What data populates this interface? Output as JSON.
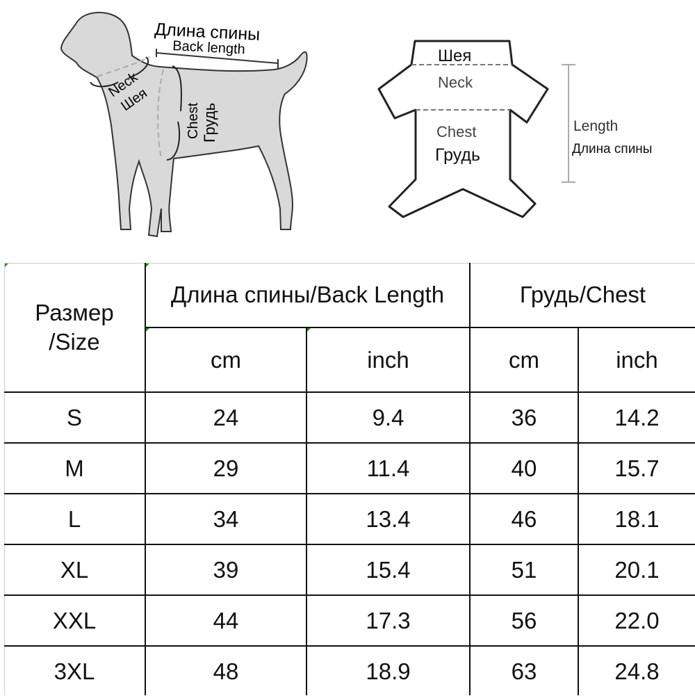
{
  "dog_diagram": {
    "back_length_ru": "Длина спины",
    "back_length_en": "Back length",
    "neck_en": "Neck",
    "neck_ru": "Шея",
    "chest_en": "Chest",
    "chest_ru": "Грудь"
  },
  "garment_diagram": {
    "neck_ru": "Шея",
    "neck_en": "Neck",
    "chest_en": "Chest",
    "chest_ru": "Грудь",
    "length_en": "Length",
    "length_ru": "Длина спины"
  },
  "table": {
    "size_header": "Размер\n/Size",
    "back_length_header": "Длина спины/Back Length",
    "chest_header": "Грудь/Chest",
    "unit_headers": [
      "cm",
      "inch",
      "cm",
      "inch"
    ],
    "rows": [
      {
        "size": "S",
        "back_cm": "24",
        "back_inch": "9.4",
        "chest_cm": "36",
        "chest_inch": "14.2"
      },
      {
        "size": "M",
        "back_cm": "29",
        "back_inch": "11.4",
        "chest_cm": "40",
        "chest_inch": "15.7"
      },
      {
        "size": "L",
        "back_cm": "34",
        "back_inch": "13.4",
        "chest_cm": "46",
        "chest_inch": "18.1"
      },
      {
        "size": "XL",
        "back_cm": "39",
        "back_inch": "15.4",
        "chest_cm": "51",
        "chest_inch": "20.1"
      },
      {
        "size": "XXL",
        "back_cm": "44",
        "back_inch": "17.3",
        "chest_cm": "56",
        "chest_inch": "22.0"
      },
      {
        "size": "3XL",
        "back_cm": "48",
        "back_inch": "18.9",
        "chest_cm": "63",
        "chest_inch": "24.8"
      }
    ]
  }
}
